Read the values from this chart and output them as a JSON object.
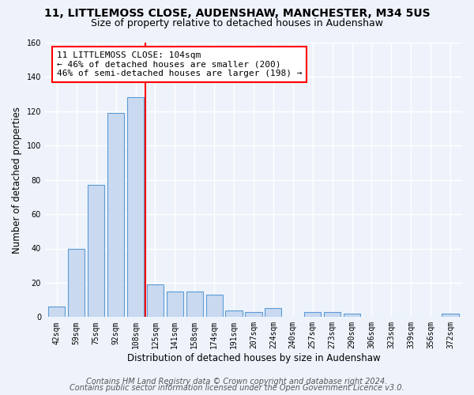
{
  "title_line1": "11, LITTLEMOSS CLOSE, AUDENSHAW, MANCHESTER, M34 5US",
  "title_line2": "Size of property relative to detached houses in Audenshaw",
  "xlabel": "Distribution of detached houses by size in Audenshaw",
  "ylabel": "Number of detached properties",
  "categories": [
    "42sqm",
    "59sqm",
    "75sqm",
    "92sqm",
    "108sqm",
    "125sqm",
    "141sqm",
    "158sqm",
    "174sqm",
    "191sqm",
    "207sqm",
    "224sqm",
    "240sqm",
    "257sqm",
    "273sqm",
    "290sqm",
    "306sqm",
    "323sqm",
    "339sqm",
    "356sqm",
    "372sqm"
  ],
  "values": [
    6,
    40,
    77,
    119,
    128,
    19,
    15,
    15,
    13,
    4,
    3,
    5,
    0,
    3,
    3,
    2,
    0,
    0,
    0,
    0,
    2
  ],
  "bar_color": "#c9d9f0",
  "bar_edge_color": "#5b9bd5",
  "red_line_x": 4.5,
  "annotation_line1": "11 LITTLEMOSS CLOSE: 104sqm",
  "annotation_line2": "← 46% of detached houses are smaller (200)",
  "annotation_line3": "46% of semi-detached houses are larger (198) →",
  "annotation_box_color": "white",
  "annotation_box_edge_color": "red",
  "red_line_color": "red",
  "ylim": [
    0,
    160
  ],
  "yticks": [
    0,
    20,
    40,
    60,
    80,
    100,
    120,
    140,
    160
  ],
  "footer_line1": "Contains HM Land Registry data © Crown copyright and database right 2024.",
  "footer_line2": "Contains public sector information licensed under the Open Government Licence v3.0.",
  "bg_color": "#eef3fb",
  "grid_color": "white",
  "title_fontsize": 10,
  "subtitle_fontsize": 9,
  "axis_label_fontsize": 8.5,
  "tick_fontsize": 7,
  "annotation_fontsize": 8,
  "footer_fontsize": 7
}
